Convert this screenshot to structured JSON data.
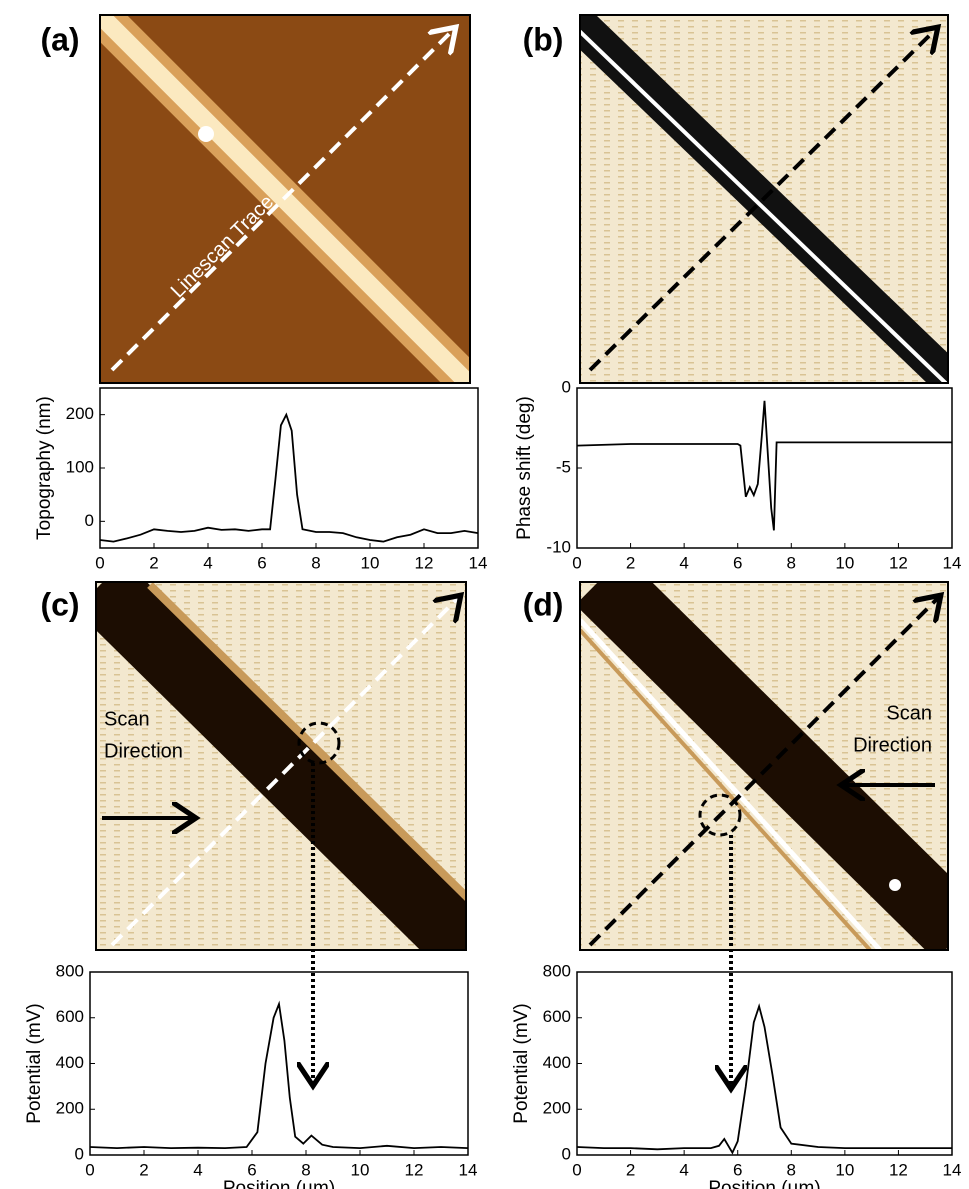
{
  "chart_data": [
    {
      "type": "line",
      "panel_label": "(a)",
      "annotations": [
        "Linescan Trace"
      ],
      "ylabel": "Topography (nm)",
      "color": "#000000",
      "x": [
        0,
        0.5,
        1,
        1.5,
        2,
        2.5,
        3,
        3.5,
        4,
        4.5,
        5,
        5.5,
        6,
        6.3,
        6.5,
        6.7,
        6.9,
        7.1,
        7.3,
        7.5,
        8,
        8.5,
        9,
        9.5,
        10,
        10.5,
        11,
        11.5,
        12,
        12.5,
        13,
        13.5,
        14
      ],
      "values": [
        -35,
        -38,
        -32,
        -25,
        -15,
        -18,
        -20,
        -18,
        -12,
        -16,
        -15,
        -18,
        -15,
        -15,
        80,
        180,
        200,
        170,
        50,
        -15,
        -20,
        -20,
        -22,
        -30,
        -35,
        -38,
        -30,
        -25,
        -15,
        -22,
        -22,
        -18,
        -22
      ],
      "xlim": [
        0,
        14
      ],
      "xticks": [
        0,
        2,
        4,
        6,
        8,
        10,
        12,
        14
      ],
      "ylim": [
        -50,
        250
      ],
      "yticks": [
        0,
        100,
        200
      ]
    },
    {
      "type": "line",
      "panel_label": "(b)",
      "annotations": [],
      "ylabel": "Phase shift (deg)",
      "color": "#000000",
      "x": [
        0,
        2,
        4,
        6,
        6.1,
        6.3,
        6.45,
        6.6,
        6.75,
        6.9,
        7.0,
        7.1,
        7.25,
        7.35,
        7.45,
        7.6,
        10,
        14
      ],
      "values": [
        -3.6,
        -3.5,
        -3.5,
        -3.5,
        -3.6,
        -6.8,
        -6.2,
        -6.7,
        -6.0,
        -3.0,
        -0.8,
        -3.5,
        -7.5,
        -8.9,
        -3.4,
        -3.4,
        -3.4,
        -3.4
      ],
      "xlim": [
        0,
        14
      ],
      "xticks": [
        0,
        2,
        4,
        6,
        8,
        10,
        12,
        14
      ],
      "ylim": [
        -10,
        0
      ],
      "yticks": [
        -10,
        -5,
        0
      ]
    },
    {
      "type": "line",
      "panel_label": "(c)",
      "annotations": [
        "Scan",
        "Direction"
      ],
      "ylabel": "Potential (mV)",
      "xlabel": "Position (µm)",
      "color": "#000000",
      "x": [
        0,
        1,
        2,
        3,
        4,
        5,
        5.8,
        6.2,
        6.5,
        6.8,
        7.0,
        7.2,
        7.4,
        7.6,
        7.9,
        8.2,
        8.6,
        9,
        10,
        11,
        12,
        13,
        14
      ],
      "values": [
        35,
        30,
        35,
        30,
        32,
        30,
        35,
        100,
        400,
        600,
        660,
        500,
        250,
        80,
        50,
        85,
        45,
        35,
        30,
        40,
        30,
        35,
        30
      ],
      "xlim": [
        0,
        14
      ],
      "xticks": [
        0,
        2,
        4,
        6,
        8,
        10,
        12,
        14
      ],
      "ylim": [
        0,
        800
      ],
      "yticks": [
        0,
        200,
        400,
        600,
        800
      ]
    },
    {
      "type": "line",
      "panel_label": "(d)",
      "annotations": [
        "Scan",
        "Direction"
      ],
      "ylabel": "Potential (mV)",
      "xlabel": "Position (µm)",
      "color": "#000000",
      "x": [
        0,
        1,
        2,
        3,
        4,
        5,
        5.3,
        5.5,
        5.8,
        6.0,
        6.3,
        6.6,
        6.8,
        7.0,
        7.3,
        7.6,
        8,
        9,
        10,
        11,
        12,
        13,
        14
      ],
      "values": [
        35,
        30,
        30,
        25,
        30,
        30,
        40,
        70,
        10,
        60,
        300,
        580,
        650,
        560,
        350,
        120,
        50,
        35,
        30,
        30,
        30,
        30,
        30
      ],
      "xlim": [
        0,
        14
      ],
      "xticks": [
        0,
        2,
        4,
        6,
        8,
        10,
        12,
        14
      ],
      "ylim": [
        0,
        800
      ],
      "yticks": [
        0,
        200,
        400,
        600,
        800
      ]
    }
  ]
}
